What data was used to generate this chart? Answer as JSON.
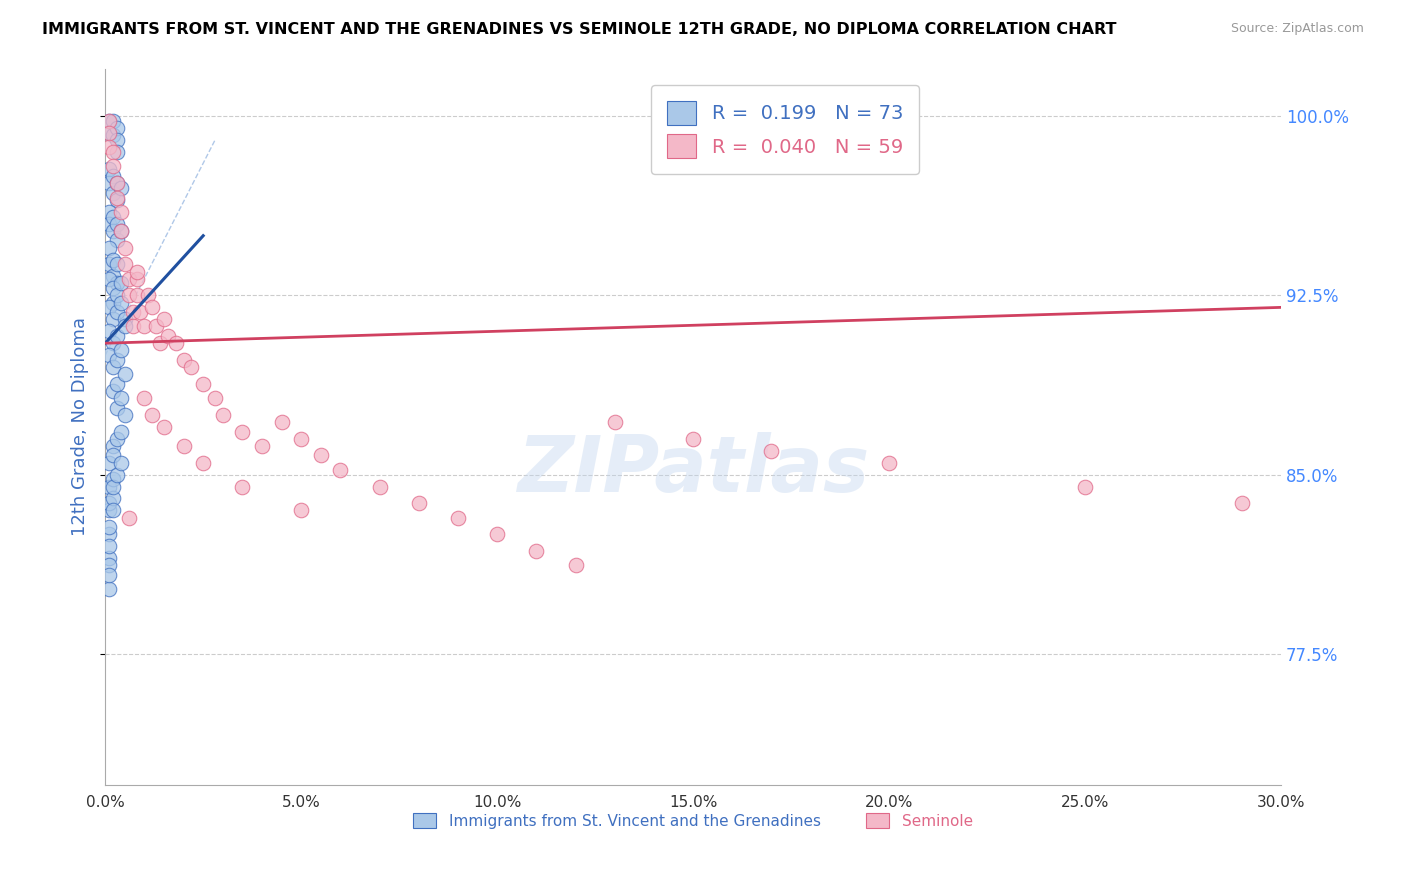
{
  "title": "IMMIGRANTS FROM ST. VINCENT AND THE GRENADINES VS SEMINOLE 12TH GRADE, NO DIPLOMA CORRELATION CHART",
  "source": "Source: ZipAtlas.com",
  "ylabel": "12th Grade, No Diploma",
  "xlabel_blue": "Immigrants from St. Vincent and the Grenadines",
  "xlabel_pink": "Seminole",
  "xlim": [
    0.0,
    0.3
  ],
  "ylim": [
    0.72,
    1.02
  ],
  "yticks": [
    0.775,
    0.85,
    0.925,
    1.0
  ],
  "ytick_labels": [
    "77.5%",
    "85.0%",
    "92.5%",
    "100.0%"
  ],
  "xtick_vals": [
    0.0,
    0.05,
    0.1,
    0.15,
    0.2,
    0.25,
    0.3
  ],
  "xtick_labels": [
    "0.0%",
    "5.0%",
    "10.0%",
    "15.0%",
    "20.0%",
    "25.0%",
    "30.0%"
  ],
  "blue_R": 0.199,
  "blue_N": 73,
  "pink_R": 0.04,
  "pink_N": 59,
  "blue_fill": "#aac8e8",
  "blue_edge": "#4070c0",
  "pink_fill": "#f4b8c8",
  "pink_edge": "#e06888",
  "diag_line_color": "#b0c8e8",
  "blue_line_color": "#2050a0",
  "pink_line_color": "#d04060",
  "watermark": "ZIPatlas",
  "blue_scatter_x": [
    0.001,
    0.001,
    0.002,
    0.002,
    0.003,
    0.003,
    0.003,
    0.001,
    0.001,
    0.002,
    0.002,
    0.003,
    0.003,
    0.004,
    0.001,
    0.001,
    0.002,
    0.002,
    0.003,
    0.003,
    0.004,
    0.001,
    0.001,
    0.002,
    0.002,
    0.003,
    0.003,
    0.001,
    0.002,
    0.002,
    0.003,
    0.004,
    0.001,
    0.002,
    0.003,
    0.004,
    0.005,
    0.001,
    0.002,
    0.003,
    0.005,
    0.001,
    0.002,
    0.003,
    0.004,
    0.002,
    0.003,
    0.005,
    0.003,
    0.004,
    0.005,
    0.002,
    0.003,
    0.004,
    0.001,
    0.002,
    0.001,
    0.002,
    0.001,
    0.001,
    0.001,
    0.001,
    0.001,
    0.001,
    0.001,
    0.001,
    0.001,
    0.002,
    0.002,
    0.002,
    0.003,
    0.004
  ],
  "blue_scatter_y": [
    0.998,
    0.993,
    0.998,
    0.992,
    0.995,
    0.99,
    0.985,
    0.978,
    0.972,
    0.975,
    0.968,
    0.972,
    0.965,
    0.97,
    0.96,
    0.955,
    0.958,
    0.952,
    0.955,
    0.948,
    0.952,
    0.945,
    0.938,
    0.94,
    0.933,
    0.938,
    0.93,
    0.932,
    0.928,
    0.922,
    0.925,
    0.93,
    0.92,
    0.915,
    0.918,
    0.922,
    0.915,
    0.91,
    0.905,
    0.908,
    0.912,
    0.9,
    0.895,
    0.898,
    0.902,
    0.885,
    0.888,
    0.892,
    0.878,
    0.882,
    0.875,
    0.862,
    0.865,
    0.868,
    0.855,
    0.858,
    0.845,
    0.848,
    0.835,
    0.838,
    0.825,
    0.828,
    0.815,
    0.82,
    0.812,
    0.802,
    0.808,
    0.84,
    0.835,
    0.845,
    0.85,
    0.855
  ],
  "pink_scatter_x": [
    0.001,
    0.001,
    0.001,
    0.002,
    0.002,
    0.003,
    0.003,
    0.004,
    0.004,
    0.005,
    0.005,
    0.006,
    0.006,
    0.007,
    0.007,
    0.008,
    0.008,
    0.009,
    0.01,
    0.011,
    0.012,
    0.013,
    0.014,
    0.015,
    0.016,
    0.018,
    0.02,
    0.022,
    0.025,
    0.028,
    0.03,
    0.035,
    0.04,
    0.045,
    0.05,
    0.055,
    0.06,
    0.07,
    0.08,
    0.09,
    0.1,
    0.11,
    0.12,
    0.13,
    0.15,
    0.17,
    0.2,
    0.25,
    0.29,
    0.006,
    0.008,
    0.01,
    0.012,
    0.015,
    0.02,
    0.025,
    0.035,
    0.05
  ],
  "pink_scatter_y": [
    0.998,
    0.993,
    0.987,
    0.985,
    0.979,
    0.972,
    0.966,
    0.96,
    0.952,
    0.945,
    0.938,
    0.932,
    0.925,
    0.918,
    0.912,
    0.932,
    0.925,
    0.918,
    0.912,
    0.925,
    0.92,
    0.912,
    0.905,
    0.915,
    0.908,
    0.905,
    0.898,
    0.895,
    0.888,
    0.882,
    0.875,
    0.868,
    0.862,
    0.872,
    0.865,
    0.858,
    0.852,
    0.845,
    0.838,
    0.832,
    0.825,
    0.818,
    0.812,
    0.872,
    0.865,
    0.86,
    0.855,
    0.845,
    0.838,
    0.832,
    0.935,
    0.882,
    0.875,
    0.87,
    0.862,
    0.855,
    0.845,
    0.835
  ],
  "blue_line_x": [
    0.0,
    0.025
  ],
  "blue_line_y": [
    0.905,
    0.95
  ],
  "pink_line_x": [
    0.0,
    0.3
  ],
  "pink_line_y": [
    0.905,
    0.92
  ],
  "diag_line_x": [
    0.0,
    0.028
  ],
  "diag_line_y": [
    0.9,
    0.99
  ]
}
